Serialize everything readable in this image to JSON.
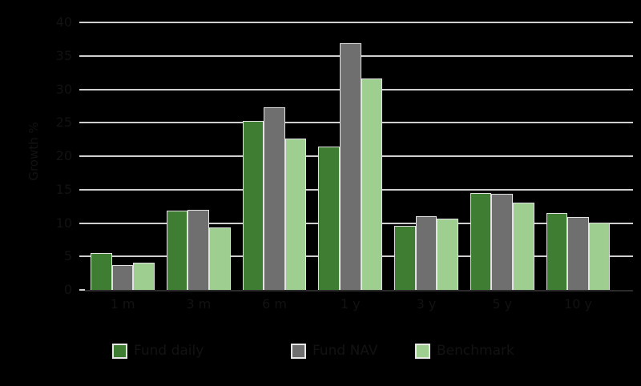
{
  "chart_data": {
    "type": "bar",
    "title": "",
    "xlabel": "",
    "ylabel": "Growth %",
    "categories": [
      "1 m",
      "3 m",
      "6 m",
      "1 y",
      "3 y",
      "5 y",
      "10 y"
    ],
    "series": [
      {
        "name": "Fund daily",
        "color": "#3e7d32",
        "values": [
          5.5,
          11.8,
          25.3,
          21.4,
          9.6,
          14.5,
          11.5
        ]
      },
      {
        "name": "Fund NAV",
        "color": "#6f6f6f",
        "values": [
          3.7,
          12.0,
          27.3,
          36.9,
          11.0,
          14.4,
          10.9
        ]
      },
      {
        "name": "Benchmark",
        "color": "#9fcf90",
        "values": [
          4.1,
          9.4,
          22.6,
          31.6,
          10.7,
          13.0,
          10.1
        ]
      }
    ],
    "ylim": [
      0,
      40
    ],
    "ytick_step": 5,
    "ytick_labels": [
      "0",
      "5",
      "10",
      "15",
      "20",
      "25",
      "30",
      "35",
      "40"
    ],
    "grid": true,
    "legend_position": "bottom"
  },
  "colors": {
    "background": "#000000",
    "text": "#121212",
    "gridline": "#cfcfcf",
    "axis_line": "#2b2b2b",
    "bar_outline": "#e2e2e2",
    "swatch_border": "#e8e8e8",
    "series": [
      "#3e7d32",
      "#6f6f6f",
      "#9fcf90"
    ]
  }
}
